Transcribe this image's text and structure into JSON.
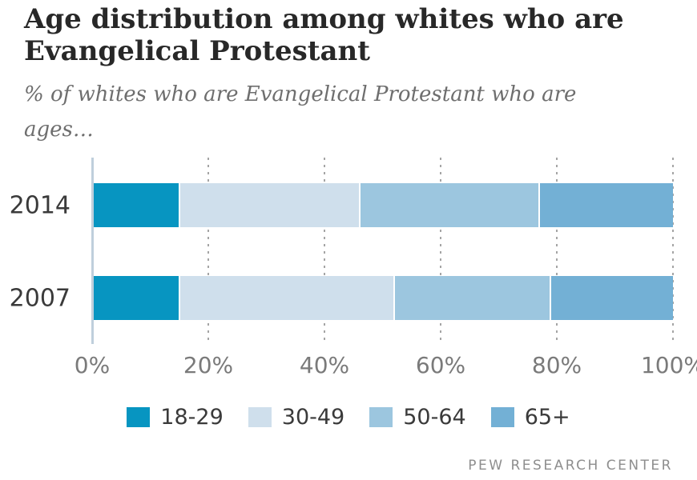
{
  "header": {
    "title_lines": [
      "Age distribution among whites who are",
      "Evangelical Protestant"
    ],
    "subtitle_lines": [
      "% of whites who are Evangelical Protestant who are",
      "ages…"
    ]
  },
  "chart_data": {
    "type": "bar",
    "orientation": "horizontal-stacked",
    "title": "Age distribution among whites who are Evangelical Protestant",
    "subtitle": "% of whites who are Evangelical Protestant who are ages…",
    "categories": [
      "2014",
      "2007"
    ],
    "series": [
      {
        "name": "18-29",
        "color": "#0795c1",
        "values": [
          15,
          15
        ]
      },
      {
        "name": "30-49",
        "color": "#cfdfec",
        "values": [
          31,
          37
        ]
      },
      {
        "name": "50-64",
        "color": "#9cc6df",
        "values": [
          31,
          27
        ]
      },
      {
        "name": "65+",
        "color": "#73b0d5",
        "values": [
          23,
          21
        ]
      }
    ],
    "xlabel": "",
    "ylabel": "",
    "x_axis": {
      "range": [
        0,
        100
      ],
      "tick_values": [
        0,
        20,
        40,
        60,
        80,
        100
      ],
      "tick_labels": [
        "0%",
        "20%",
        "40%",
        "60%",
        "80%",
        "100%"
      ],
      "grid": "dotted-vertical-gridlines"
    },
    "legend_position": "bottom-center",
    "colors": {
      "axis_line": "#bfcfdc",
      "gridline": "#a5a5a5",
      "segment_separator": "#ffffff"
    }
  },
  "footer": {
    "source_label": "PEW RESEARCH CENTER"
  }
}
